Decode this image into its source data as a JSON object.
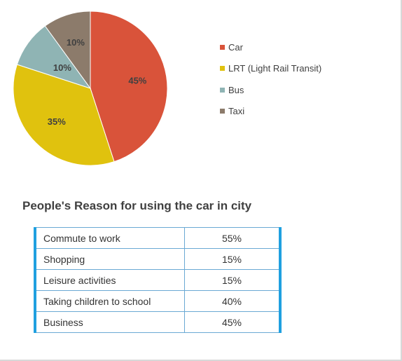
{
  "chart_data": [
    {
      "type": "pie",
      "labels": [
        "Car",
        "LRT (Light Rail Transit)",
        "Bus",
        "Taxi"
      ],
      "values": [
        45,
        35,
        10,
        10
      ],
      "value_labels": [
        "45%",
        "35%",
        "10%",
        "10%"
      ],
      "colors": [
        "#d9533a",
        "#e0c20e",
        "#8fb4b4",
        "#8c7b6b"
      ],
      "legend": "right"
    },
    {
      "type": "table",
      "title": "People's Reason for using the car in city",
      "rows": [
        {
          "reason": "Commute to work",
          "value": "55%"
        },
        {
          "reason": "Shopping",
          "value": "15%"
        },
        {
          "reason": "Leisure activities",
          "value": "15%"
        },
        {
          "reason": "Taking children to school",
          "value": "40%"
        },
        {
          "reason": "Business",
          "value": "45%"
        }
      ]
    }
  ]
}
